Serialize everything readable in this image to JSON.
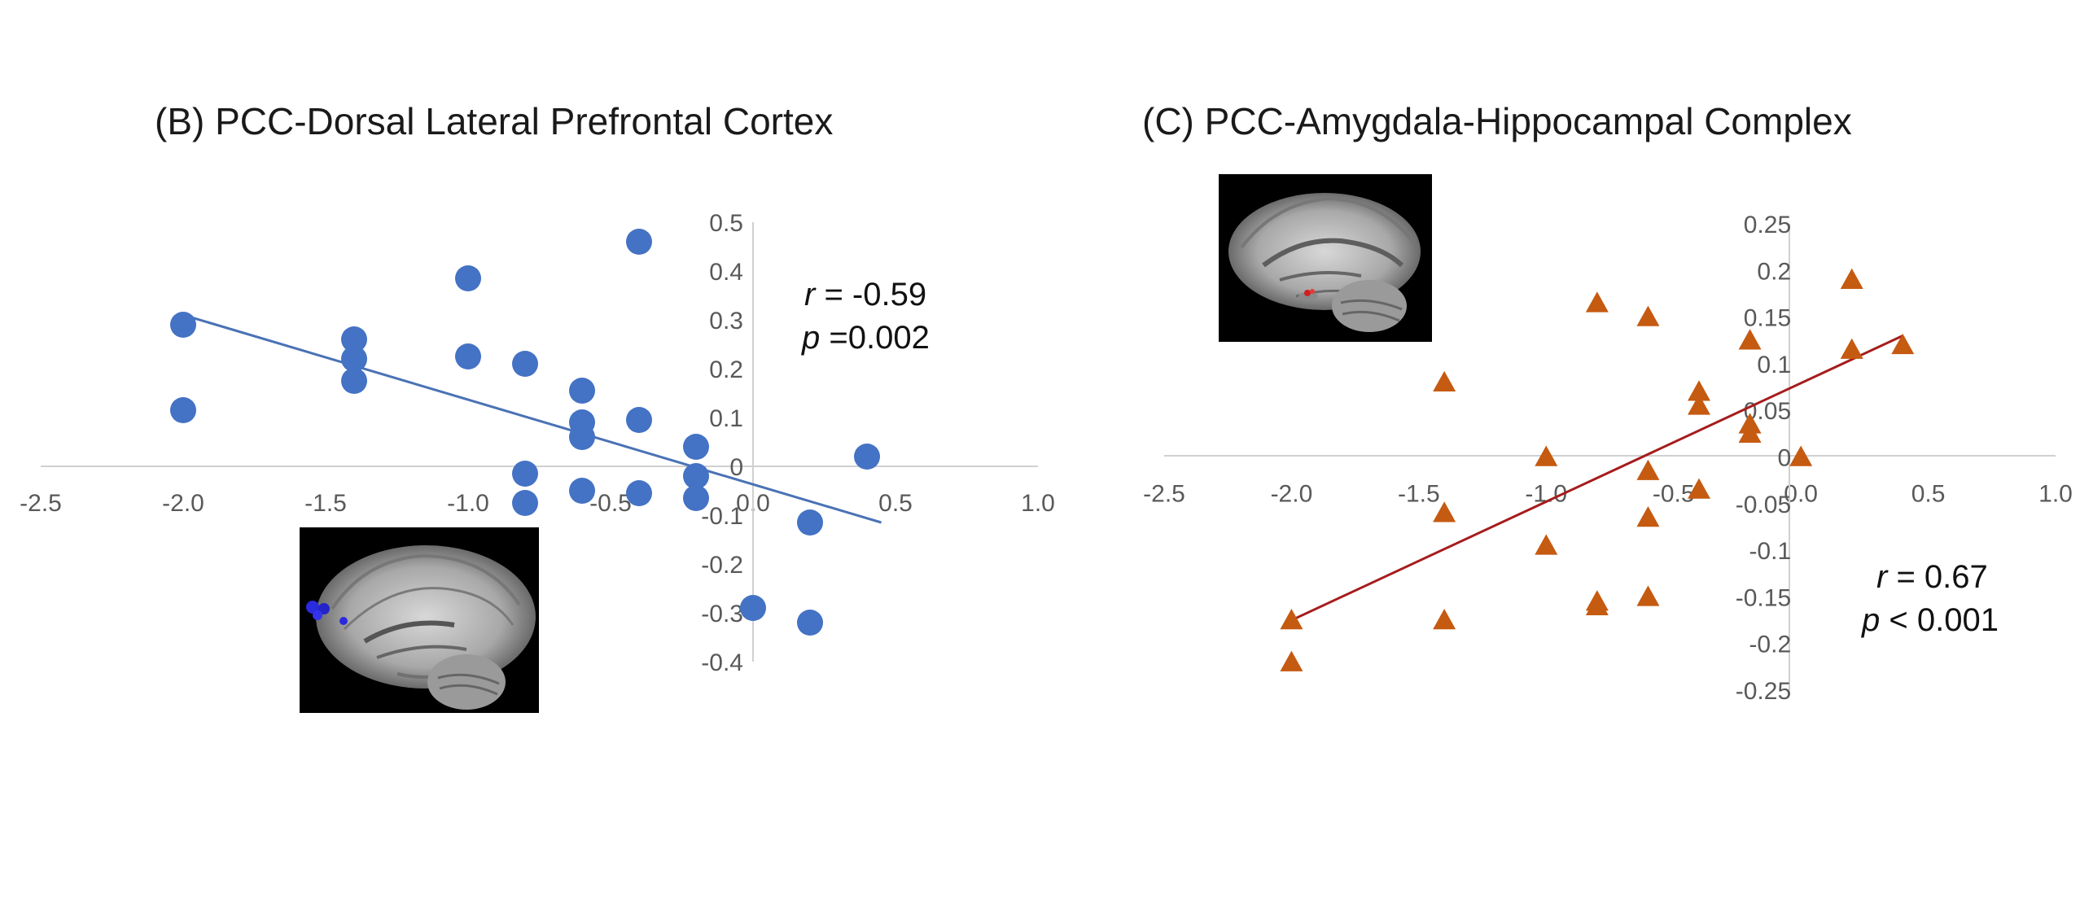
{
  "chart_data": [
    {
      "type": "scatter",
      "title": "(B) PCC-Dorsal Lateral Prefrontal Cortex",
      "xlim": [
        -2.5,
        1.0
      ],
      "ylim": [
        -0.4,
        0.5
      ],
      "x_ticks": [
        "-2.5",
        "-2.0",
        "-1.5",
        "-1.0",
        "-0.5",
        "0.0",
        "0.5",
        "1.0"
      ],
      "y_ticks": [
        "0.5",
        "0.4",
        "0.3",
        "0.2",
        "0.1",
        "0",
        "-0.1",
        "-0.2",
        "-0.3",
        "-0.4"
      ],
      "marker": "circle",
      "color": "#4472C4",
      "line_color": "#4A72B5",
      "grid": false,
      "points": [
        {
          "x": -2.0,
          "y": 0.29
        },
        {
          "x": -2.0,
          "y": 0.115
        },
        {
          "x": -1.4,
          "y": 0.26
        },
        {
          "x": -1.4,
          "y": 0.22
        },
        {
          "x": -1.4,
          "y": 0.175
        },
        {
          "x": -1.0,
          "y": 0.385
        },
        {
          "x": -1.0,
          "y": 0.225
        },
        {
          "x": -0.8,
          "y": 0.21
        },
        {
          "x": -0.8,
          "y": -0.015
        },
        {
          "x": -0.8,
          "y": -0.075
        },
        {
          "x": -0.6,
          "y": 0.155
        },
        {
          "x": -0.6,
          "y": 0.09
        },
        {
          "x": -0.6,
          "y": 0.06
        },
        {
          "x": -0.6,
          "y": -0.05
        },
        {
          "x": -0.4,
          "y": 0.46
        },
        {
          "x": -0.4,
          "y": 0.095
        },
        {
          "x": -0.4,
          "y": -0.055
        },
        {
          "x": -0.2,
          "y": 0.04
        },
        {
          "x": -0.2,
          "y": -0.02
        },
        {
          "x": -0.2,
          "y": -0.065
        },
        {
          "x": 0.0,
          "y": -0.29
        },
        {
          "x": 0.2,
          "y": -0.115
        },
        {
          "x": 0.2,
          "y": -0.32
        },
        {
          "x": 0.4,
          "y": 0.02
        }
      ],
      "trendline": {
        "x": [
          -2.0,
          0.45
        ],
        "y": [
          0.31,
          -0.115
        ]
      },
      "annotation": {
        "r_label": "r",
        "r_text": " = -0.59",
        "p_label": "p",
        "p_text": " =0.002"
      },
      "inset": "brain-sagittal-blue-dlpfc"
    },
    {
      "type": "scatter",
      "title": "(C) PCC-Amygdala-Hippocampal Complex",
      "xlim": [
        -2.5,
        1.0
      ],
      "ylim": [
        -0.25,
        0.25
      ],
      "x_ticks": [
        "-2.5",
        "-2.0",
        "-1.5",
        "-1.0",
        "-0.5",
        "0.0",
        "0.5",
        "1.0"
      ],
      "y_ticks": [
        "0.25",
        "0.2",
        "0.15",
        "0.1",
        "0.05",
        "0",
        "-0.05",
        "-0.1",
        "-0.15",
        "-0.2",
        "-0.25"
      ],
      "marker": "triangle",
      "color": "#C55A11",
      "line_color": "#A61C1C",
      "grid": false,
      "points": [
        {
          "x": -2.0,
          "y": -0.175
        },
        {
          "x": -2.0,
          "y": -0.22
        },
        {
          "x": -1.4,
          "y": 0.08
        },
        {
          "x": -1.4,
          "y": -0.06
        },
        {
          "x": -1.4,
          "y": -0.175
        },
        {
          "x": -1.0,
          "y": 0.0
        },
        {
          "x": -1.0,
          "y": -0.095
        },
        {
          "x": -0.8,
          "y": 0.165
        },
        {
          "x": -0.8,
          "y": -0.155
        },
        {
          "x": -0.8,
          "y": -0.16
        },
        {
          "x": -0.6,
          "y": 0.15
        },
        {
          "x": -0.6,
          "y": -0.015
        },
        {
          "x": -0.6,
          "y": -0.065
        },
        {
          "x": -0.6,
          "y": -0.15
        },
        {
          "x": -0.4,
          "y": 0.07
        },
        {
          "x": -0.4,
          "y": 0.055
        },
        {
          "x": -0.4,
          "y": -0.035
        },
        {
          "x": -0.2,
          "y": 0.125
        },
        {
          "x": -0.2,
          "y": 0.035
        },
        {
          "x": -0.2,
          "y": 0.025
        },
        {
          "x": 0.0,
          "y": 0.0
        },
        {
          "x": 0.2,
          "y": 0.19
        },
        {
          "x": 0.2,
          "y": 0.115
        },
        {
          "x": 0.4,
          "y": 0.12
        }
      ],
      "trendline": {
        "x": [
          -2.0,
          0.4
        ],
        "y": [
          -0.175,
          0.13
        ]
      },
      "annotation": {
        "r_label": "r",
        "r_text": " = 0.67",
        "p_label": "p",
        "p_text": " < 0.001"
      },
      "inset": "brain-sagittal-red-amygdala"
    }
  ]
}
